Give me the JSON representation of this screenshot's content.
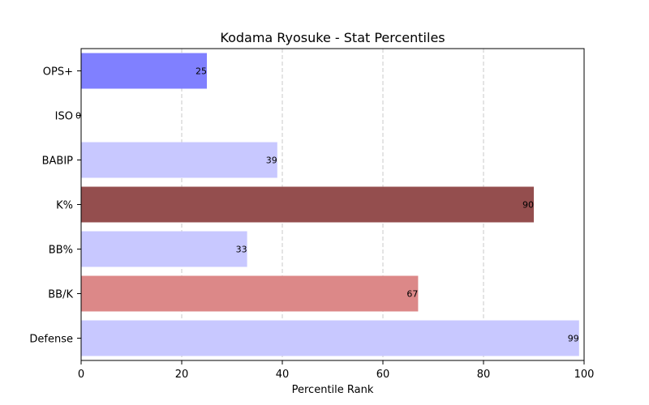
{
  "chart_data": {
    "type": "bar",
    "orientation": "horizontal",
    "title": "Kodama Ryosuke - Stat Percentiles",
    "xlabel": "Percentile Rank",
    "ylabel": "",
    "xlim": [
      0,
      100
    ],
    "x_ticks": [
      0,
      20,
      40,
      60,
      80,
      100
    ],
    "grid": "x-dashed",
    "categories": [
      "OPS+",
      "ISO",
      "BABIP",
      "K%",
      "BB%",
      "BB/K",
      "Defense"
    ],
    "values": [
      25,
      0,
      39,
      90,
      33,
      67,
      99
    ],
    "colors": [
      "#8080ff",
      "#c8c8ff",
      "#c8c8ff",
      "#944e4e",
      "#c8c8ff",
      "#dc8888",
      "#c8c8ff"
    ]
  }
}
